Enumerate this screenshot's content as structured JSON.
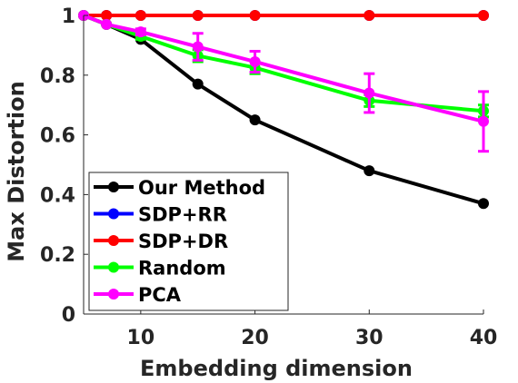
{
  "chart_data": {
    "type": "line",
    "title": "",
    "xlabel": "Embedding dimension",
    "ylabel": "Max Distortion",
    "xlim": [
      5,
      40
    ],
    "ylim": [
      0,
      1
    ],
    "xticks": [
      10,
      20,
      30,
      40
    ],
    "xtick_labels": [
      "10",
      "20",
      "30",
      "40"
    ],
    "yticks": [
      0,
      0.2,
      0.4,
      0.6,
      0.8,
      1
    ],
    "ytick_labels": [
      "0",
      "0.2",
      "0.4",
      "0.6",
      "0.8",
      "1"
    ],
    "grid": false,
    "legend_position": "bottom-left",
    "series": [
      {
        "name": "Our Method",
        "color": "#000000",
        "x": [
          5,
          7,
          10,
          15,
          20,
          30,
          40
        ],
        "y": [
          1.0,
          0.97,
          0.92,
          0.77,
          0.65,
          0.48,
          0.37
        ],
        "err": [
          0,
          0,
          0,
          0,
          0,
          0,
          0
        ]
      },
      {
        "name": "SDP+RR",
        "color": "#0000ff",
        "x": [
          5,
          7,
          10,
          15,
          20,
          30,
          40
        ],
        "y": [
          1.0,
          1.0,
          1.0,
          1.0,
          1.0,
          1.0,
          1.0
        ],
        "err": [
          0,
          0,
          0,
          0,
          0,
          0,
          0
        ]
      },
      {
        "name": "SDP+DR",
        "color": "#ff0000",
        "x": [
          5,
          7,
          10,
          15,
          20,
          30,
          40
        ],
        "y": [
          1.0,
          1.0,
          1.0,
          1.0,
          1.0,
          1.0,
          1.0
        ],
        "err": [
          0,
          0,
          0,
          0,
          0,
          0,
          0
        ]
      },
      {
        "name": "Random",
        "color": "#00ff00",
        "x": [
          5,
          7,
          10,
          15,
          20,
          30,
          40
        ],
        "y": [
          1.0,
          0.97,
          0.93,
          0.865,
          0.825,
          0.715,
          0.68
        ],
        "err": [
          0,
          0,
          0.01,
          0.02,
          0.02,
          0.02,
          0.02
        ]
      },
      {
        "name": "PCA",
        "color": "#ff00ff",
        "x": [
          5,
          7,
          10,
          15,
          20,
          30,
          40
        ],
        "y": [
          1.0,
          0.97,
          0.945,
          0.895,
          0.845,
          0.74,
          0.645
        ],
        "err": [
          0,
          0,
          0.01,
          0.045,
          0.035,
          0.065,
          0.1
        ]
      }
    ]
  }
}
